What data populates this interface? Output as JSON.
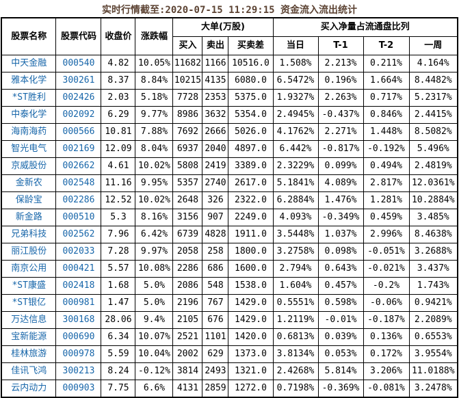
{
  "title": "实时行情截至:2020-07-15 11:29:15 资金流入流出统计",
  "colors": {
    "title_text": "#5c4333",
    "link_blue": "#1665a9",
    "table_text": "#000000",
    "border": "#000000",
    "background": "#ffffff"
  },
  "chart_data": {
    "type": "table",
    "title": "实时行情截至:2020-07-15 11:29:15 资金流入流出统计",
    "header": {
      "stock_name": "股票名称",
      "stock_code": "股票代码",
      "close_price": "收盘价",
      "change_pct": "涨跌幅",
      "group_big_orders": "大单(万股)",
      "buy": "买入",
      "sell": "卖出",
      "buy_sell_diff": "买卖差",
      "group_net_buy_ratio": "买入净量占流通盘比列",
      "today": "当日",
      "t_minus_1": "T-1",
      "t_minus_2": "T-2",
      "one_week": "一周"
    },
    "rows": [
      [
        "中天金融",
        "000540",
        "4.82",
        "10.05%",
        "11682",
        "1166",
        "10516.0",
        "1.508%",
        "2.213%",
        "0.211%",
        "4.164%"
      ],
      [
        "雅本化学",
        "300261",
        "8.37",
        "8.84%",
        "10215",
        "4135",
        "6080.0",
        "6.5472%",
        "0.196%",
        "1.664%",
        "8.4482%"
      ],
      [
        "*ST胜利",
        "002426",
        "2.03",
        "5.18%",
        "7728",
        "2353",
        "5375.0",
        "1.9327%",
        "2.263%",
        "0.717%",
        "5.2317%"
      ],
      [
        "中泰化学",
        "002092",
        "6.29",
        "9.77%",
        "8986",
        "3632",
        "5354.0",
        "2.4945%",
        "-0.437%",
        "0.846%",
        "2.4415%"
      ],
      [
        "海南海药",
        "000566",
        "10.81",
        "7.88%",
        "7692",
        "2666",
        "5026.0",
        "4.1762%",
        "2.271%",
        "1.448%",
        "8.5082%"
      ],
      [
        "智光电气",
        "002169",
        "12.09",
        "8.04%",
        "6937",
        "2040",
        "4897.0",
        "6.442%",
        "-0.817%",
        "-0.192%",
        "5.496%"
      ],
      [
        "京威股份",
        "002662",
        "4.61",
        "10.02%",
        "5808",
        "2419",
        "3389.0",
        "2.3229%",
        "0.099%",
        "0.494%",
        "2.4819%"
      ],
      [
        "金新农",
        "002548",
        "11.16",
        "9.95%",
        "5357",
        "2740",
        "2617.0",
        "5.1841%",
        "4.089%",
        "2.817%",
        "12.0361%"
      ],
      [
        "保龄宝",
        "002286",
        "12.52",
        "10.02%",
        "2648",
        "326",
        "2322.0",
        "6.2884%",
        "1.476%",
        "1.281%",
        "10.2884%"
      ],
      [
        "新金路",
        "000510",
        "5.3",
        "8.16%",
        "3156",
        "907",
        "2249.0",
        "4.093%",
        "-0.349%",
        "0.459%",
        "3.485%"
      ],
      [
        "兄弟科技",
        "002562",
        "7.96",
        "6.42%",
        "6739",
        "4828",
        "1911.0",
        "3.5448%",
        "1.037%",
        "2.996%",
        "8.4638%"
      ],
      [
        "丽江股份",
        "002033",
        "7.28",
        "9.97%",
        "2058",
        "258",
        "1800.0",
        "3.2758%",
        "0.098%",
        "-0.051%",
        "3.2688%"
      ],
      [
        "南京公用",
        "000421",
        "5.57",
        "10.08%",
        "2286",
        "686",
        "1600.0",
        "2.794%",
        "0.643%",
        "-0.021%",
        "3.437%"
      ],
      [
        "*ST康盛",
        "002418",
        "1.68",
        "5.0%",
        "2086",
        "548",
        "1538.0",
        "1.604%",
        "0.457%",
        "-0.2%",
        "1.743%"
      ],
      [
        "*ST银亿",
        "000981",
        "1.47",
        "5.0%",
        "2196",
        "767",
        "1429.0",
        "0.5551%",
        "0.598%",
        "-0.06%",
        "0.9421%"
      ],
      [
        "万达信息",
        "300168",
        "28.06",
        "9.4%",
        "2105",
        "676",
        "1429.0",
        "1.2119%",
        "-0.01%",
        "-0.187%",
        "2.2089%"
      ],
      [
        "宝新能源",
        "000690",
        "6.34",
        "10.07%",
        "2521",
        "1101",
        "1420.0",
        "0.6813%",
        "0.039%",
        "0.136%",
        "0.6553%"
      ],
      [
        "桂林旅游",
        "000978",
        "5.59",
        "10.04%",
        "2002",
        "629",
        "1373.0",
        "3.8134%",
        "0.053%",
        "0.172%",
        "3.9554%"
      ],
      [
        "佳讯飞鸿",
        "300213",
        "8.24",
        "-0.12%",
        "3814",
        "2493",
        "1321.0",
        "2.4268%",
        "5.814%",
        "3.206%",
        "11.0188%"
      ],
      [
        "云内动力",
        "000903",
        "7.75",
        "6.6%",
        "4131",
        "2859",
        "1272.0",
        "0.7198%",
        "-0.369%",
        "-0.081%",
        "3.2478%"
      ]
    ]
  }
}
